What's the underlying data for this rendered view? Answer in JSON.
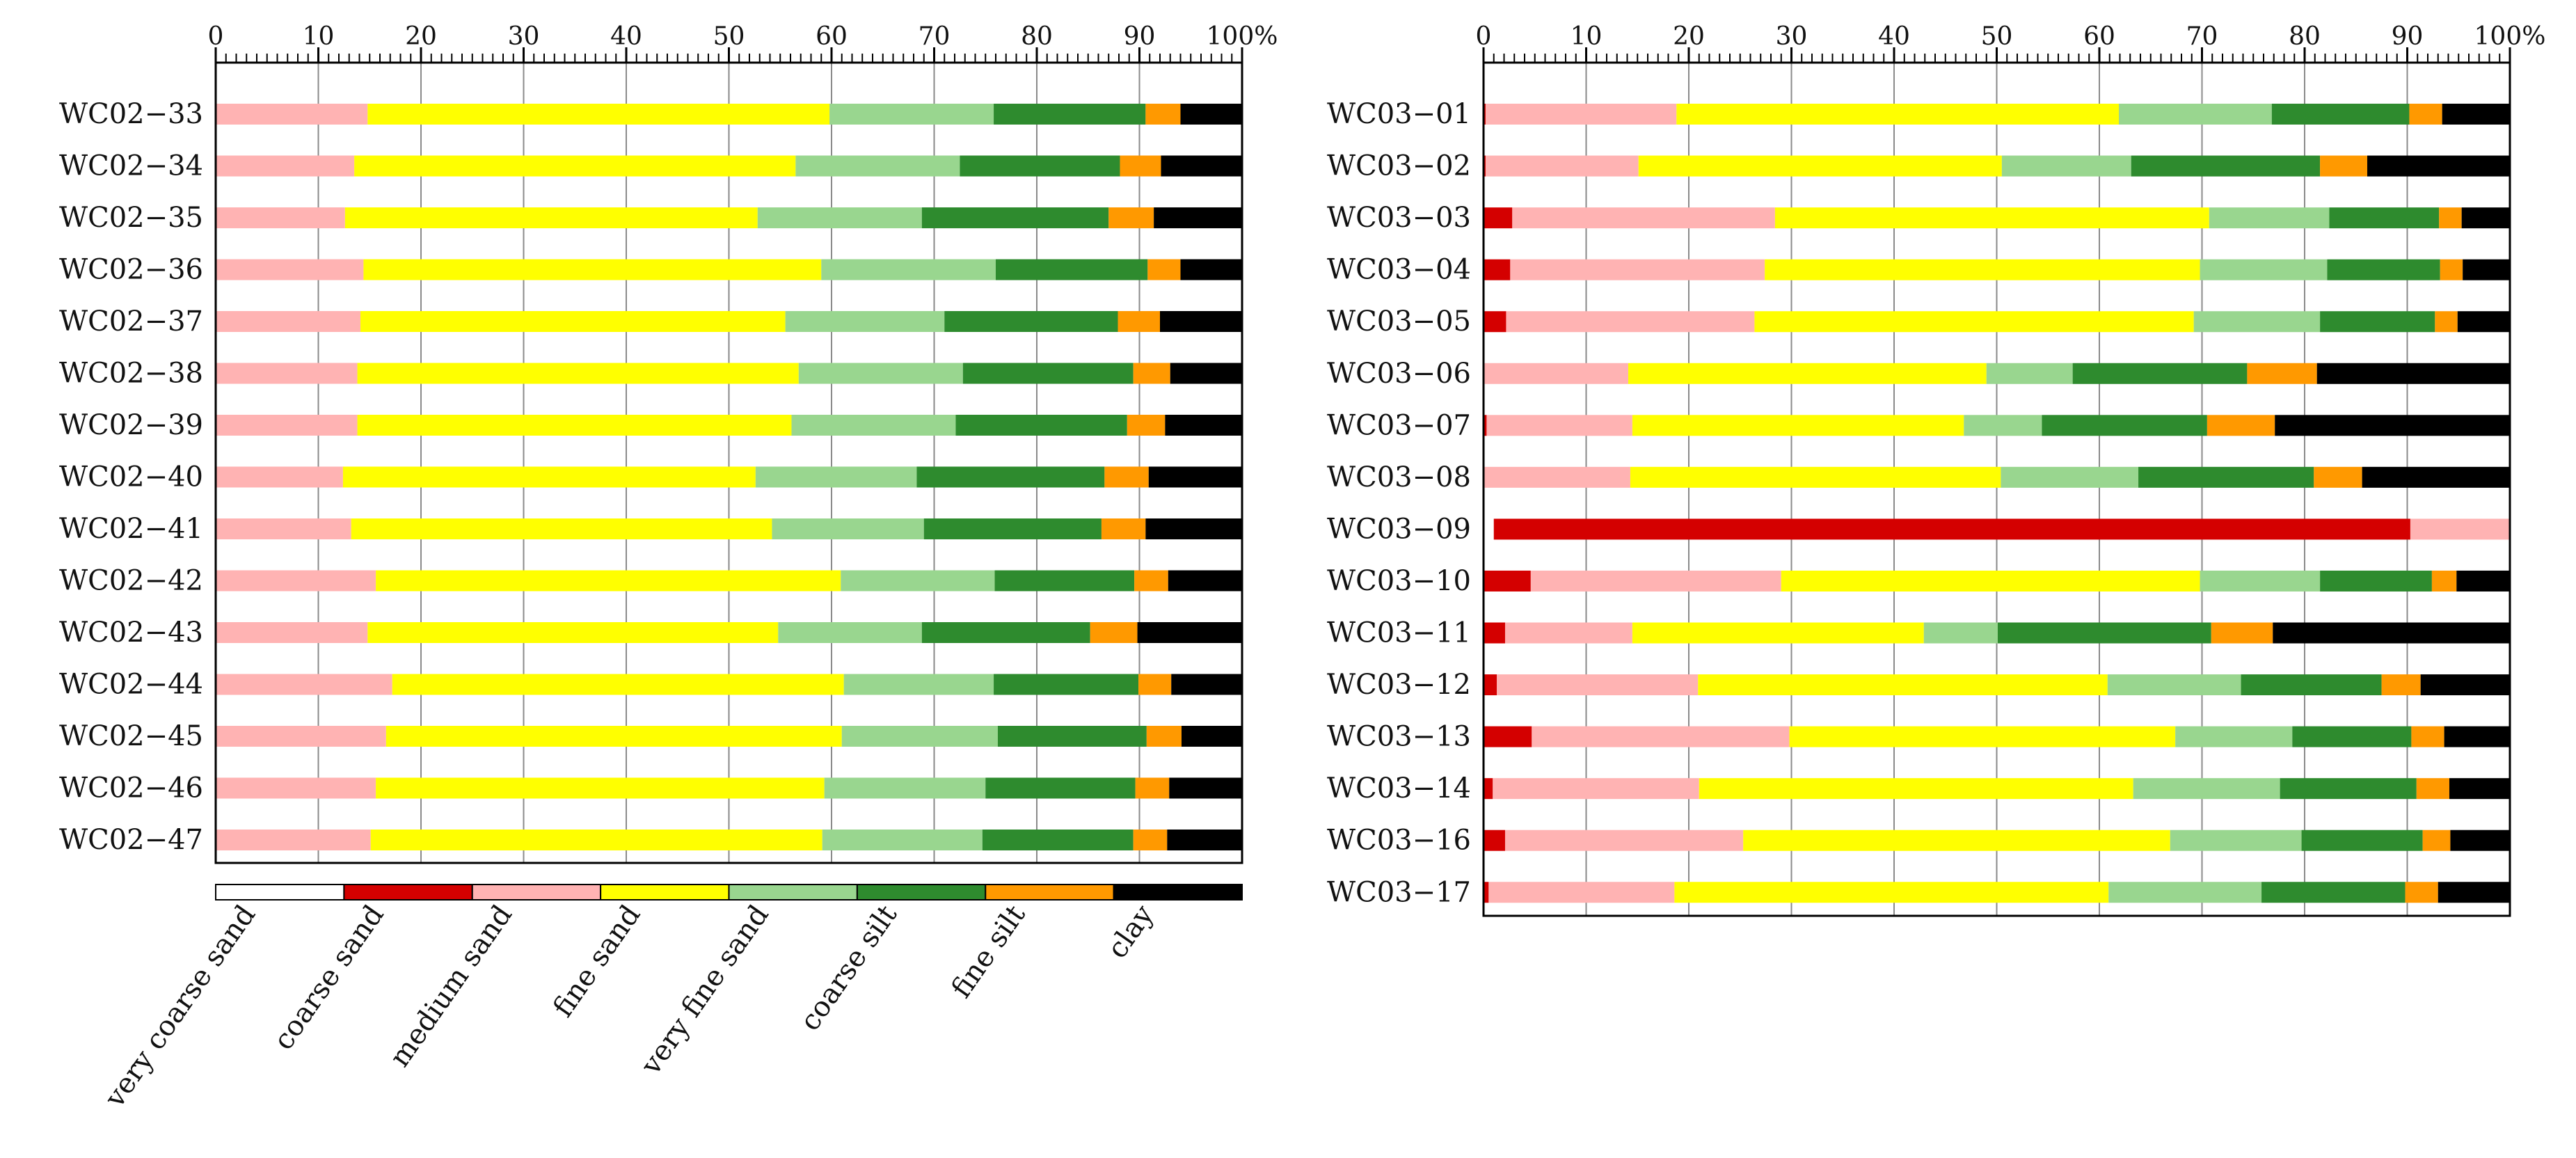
{
  "chart_data": [
    {
      "type": "bar",
      "orientation": "horizontal",
      "stacked": true,
      "title": "",
      "xlabel": "",
      "ylabel": "",
      "xlim": [
        0,
        100
      ],
      "x_ticks": [
        "0",
        "10",
        "20",
        "30",
        "40",
        "50",
        "60",
        "70",
        "80",
        "90",
        "100%"
      ],
      "grid": true,
      "categories": [
        "WC02−33",
        "WC02−34",
        "WC02−35",
        "WC02−36",
        "WC02−37",
        "WC02−38",
        "WC02−39",
        "WC02−40",
        "WC02−41",
        "WC02−42",
        "WC02−43",
        "WC02−44",
        "WC02−45",
        "WC02−46",
        "WC02−47"
      ],
      "series": [
        {
          "name": "very coarse sand",
          "color": "#ffffff",
          "values": [
            0,
            0,
            0,
            0,
            0,
            0,
            0,
            0,
            0,
            0,
            0,
            0,
            0,
            0,
            0
          ]
        },
        {
          "name": "coarse sand",
          "color": "#d40000",
          "values": [
            0,
            0,
            0,
            0,
            0,
            0,
            0,
            0,
            0,
            0,
            0,
            0,
            0,
            0,
            0
          ]
        },
        {
          "name": "medium sand",
          "color": "#ffb3b3",
          "values": [
            14.8,
            13.5,
            12.6,
            14.4,
            14.1,
            13.8,
            13.8,
            12.4,
            13.2,
            15.6,
            14.8,
            17.2,
            16.6,
            15.6,
            15.1
          ]
        },
        {
          "name": "fine sand",
          "color": "#ffff00",
          "values": [
            45.0,
            43.0,
            40.2,
            44.6,
            41.4,
            43.0,
            42.3,
            40.2,
            41.0,
            45.3,
            40.0,
            44.0,
            44.4,
            43.7,
            44.0
          ]
        },
        {
          "name": "very fine sand",
          "color": "#99d68f",
          "values": [
            16.0,
            16.0,
            16.0,
            17.0,
            15.5,
            16.0,
            16.0,
            15.7,
            14.8,
            15.0,
            14.0,
            14.6,
            15.2,
            15.7,
            15.6
          ]
        },
        {
          "name": "coarse silt",
          "color": "#2e8b2e",
          "values": [
            14.8,
            15.6,
            18.2,
            14.8,
            16.9,
            16.6,
            16.7,
            18.3,
            17.3,
            13.6,
            16.4,
            14.1,
            14.5,
            14.6,
            14.7
          ]
        },
        {
          "name": "fine silt",
          "color": "#ff9900",
          "values": [
            3.4,
            4.0,
            4.4,
            3.2,
            4.1,
            3.6,
            3.7,
            4.3,
            4.3,
            3.3,
            4.6,
            3.2,
            3.4,
            3.3,
            3.3
          ]
        },
        {
          "name": "clay",
          "color": "#000000",
          "values": [
            6.0,
            7.9,
            8.6,
            6.0,
            8.0,
            7.0,
            7.5,
            9.1,
            9.4,
            7.2,
            10.2,
            6.9,
            5.9,
            7.1,
            7.3
          ]
        }
      ],
      "legend": {
        "placement": "bottom",
        "labels": [
          "very coarse sand",
          "coarse sand",
          "medium sand",
          "fine sand",
          "very fine sand",
          "coarse silt",
          "fine silt",
          "clay"
        ]
      }
    },
    {
      "type": "bar",
      "orientation": "horizontal",
      "stacked": true,
      "title": "",
      "xlabel": "",
      "ylabel": "",
      "xlim": [
        0,
        100
      ],
      "x_ticks": [
        "0",
        "10",
        "20",
        "30",
        "40",
        "50",
        "60",
        "70",
        "80",
        "90",
        "100%"
      ],
      "grid": true,
      "categories": [
        "WC03−01",
        "WC03−02",
        "WC03−03",
        "WC03−04",
        "WC03−05",
        "WC03−06",
        "WC03−07",
        "WC03−08",
        "WC03−09",
        "WC03−10",
        "WC03−11",
        "WC03−12",
        "WC03−13",
        "WC03−14",
        "WC03−16",
        "WC03−17"
      ],
      "series": [
        {
          "name": "very coarse sand",
          "color": "#ffffff",
          "values": [
            0,
            0,
            0,
            0,
            0,
            0,
            0,
            0,
            1.0,
            0,
            0,
            0,
            0,
            0,
            0,
            0
          ]
        },
        {
          "name": "coarse sand",
          "color": "#d40000",
          "values": [
            0.2,
            0.2,
            2.8,
            2.6,
            2.2,
            0.1,
            0.3,
            0.1,
            89.3,
            4.6,
            2.1,
            1.3,
            4.7,
            0.9,
            2.1,
            0.5
          ]
        },
        {
          "name": "medium sand",
          "color": "#ffb3b3",
          "values": [
            18.6,
            14.9,
            25.6,
            24.8,
            24.2,
            14.0,
            14.2,
            14.2,
            9.7,
            24.4,
            12.4,
            19.6,
            25.1,
            20.1,
            23.2,
            18.1
          ]
        },
        {
          "name": "fine sand",
          "color": "#ffff00",
          "values": [
            43.1,
            35.4,
            42.3,
            42.4,
            42.8,
            34.9,
            32.3,
            36.1,
            0,
            40.8,
            28.4,
            39.9,
            37.6,
            42.3,
            41.6,
            42.3
          ]
        },
        {
          "name": "very fine sand",
          "color": "#99d68f",
          "values": [
            14.9,
            12.6,
            11.7,
            12.4,
            12.3,
            8.4,
            7.6,
            13.4,
            0,
            11.7,
            7.2,
            13.0,
            11.4,
            14.3,
            12.8,
            14.9
          ]
        },
        {
          "name": "coarse silt",
          "color": "#2e8b2e",
          "values": [
            13.4,
            18.4,
            10.7,
            11.0,
            11.2,
            17.0,
            16.1,
            17.1,
            0,
            10.9,
            20.8,
            13.7,
            11.6,
            13.3,
            11.8,
            14.0
          ]
        },
        {
          "name": "fine silt",
          "color": "#ff9900",
          "values": [
            3.2,
            4.6,
            2.2,
            2.2,
            2.2,
            6.8,
            6.6,
            4.7,
            0,
            2.4,
            6.0,
            3.8,
            3.2,
            3.2,
            2.7,
            3.2
          ]
        },
        {
          "name": "clay",
          "color": "#000000",
          "values": [
            6.6,
            13.9,
            4.7,
            4.6,
            5.1,
            18.8,
            22.9,
            14.4,
            0,
            5.2,
            23.1,
            8.7,
            6.4,
            5.9,
            5.8,
            7.0
          ]
        }
      ]
    }
  ]
}
